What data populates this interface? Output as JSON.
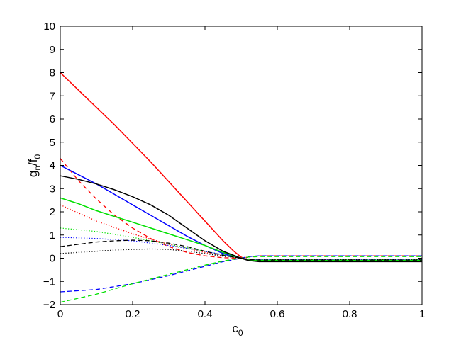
{
  "chart_data": {
    "type": "line",
    "title": "",
    "xlabel": "c",
    "xlabel_subscript": "0",
    "ylabel": "g",
    "ylabel_subscript": "n",
    "ylabel_sep": "/f",
    "ylabel_subscript2": "0",
    "xlim": [
      0,
      1
    ],
    "ylim": [
      -2,
      10
    ],
    "xticks": [
      0,
      0.2,
      0.4,
      0.6,
      0.8,
      1
    ],
    "xtick_labels": [
      "0",
      "0.2",
      "0.4",
      "0.6",
      "0.8",
      "1"
    ],
    "yticks": [
      -2,
      -1,
      0,
      1,
      2,
      3,
      4,
      5,
      6,
      7,
      8,
      9,
      10
    ],
    "ytick_labels": [
      "−2",
      "−1",
      "0",
      "1",
      "2",
      "3",
      "4",
      "5",
      "6",
      "7",
      "8",
      "9",
      "10"
    ],
    "grid": false,
    "legend": "none",
    "series": [
      {
        "color": "#ff0000",
        "style": "solid",
        "x": [
          0,
          0.05,
          0.1,
          0.15,
          0.2,
          0.25,
          0.3,
          0.35,
          0.4,
          0.45,
          0.48,
          0.5,
          0.52,
          0.55,
          0.6,
          0.8,
          1
        ],
        "y": [
          8.0,
          7.25,
          6.5,
          5.75,
          4.95,
          4.15,
          3.3,
          2.45,
          1.6,
          0.75,
          0.3,
          0.05,
          -0.1,
          -0.13,
          -0.13,
          -0.13,
          -0.13
        ]
      },
      {
        "color": "#ff0000",
        "style": "dashed",
        "x": [
          0,
          0.05,
          0.1,
          0.15,
          0.2,
          0.25,
          0.3,
          0.35,
          0.4,
          0.45,
          0.5,
          0.52,
          0.55,
          0.6,
          0.8,
          1
        ],
        "y": [
          4.3,
          3.35,
          2.55,
          1.85,
          1.3,
          0.85,
          0.5,
          0.25,
          0.1,
          0.02,
          0.0,
          0.05,
          0.1,
          0.1,
          0.1,
          0.1
        ]
      },
      {
        "color": "#ff0000",
        "style": "dotted",
        "x": [
          0,
          0.1,
          0.2,
          0.3,
          0.4,
          0.45,
          0.5,
          0.52,
          0.55,
          0.6,
          0.8,
          1
        ],
        "y": [
          2.3,
          1.6,
          1.05,
          0.6,
          0.25,
          0.1,
          0.0,
          -0.05,
          -0.07,
          -0.07,
          -0.07,
          -0.07
        ]
      },
      {
        "color": "#0000ff",
        "style": "solid",
        "x": [
          0,
          0.05,
          0.1,
          0.15,
          0.2,
          0.25,
          0.3,
          0.35,
          0.4,
          0.45,
          0.5,
          0.52,
          0.55,
          0.6,
          0.8,
          1
        ],
        "y": [
          4.0,
          3.6,
          3.2,
          2.75,
          2.3,
          1.85,
          1.4,
          0.95,
          0.55,
          0.2,
          0.0,
          -0.08,
          -0.1,
          -0.1,
          -0.1,
          -0.1
        ]
      },
      {
        "color": "#0000ff",
        "style": "dashed",
        "x": [
          0,
          0.1,
          0.2,
          0.3,
          0.4,
          0.45,
          0.5,
          0.52,
          0.55,
          0.6,
          0.8,
          1
        ],
        "y": [
          -1.45,
          -1.35,
          -1.1,
          -0.75,
          -0.35,
          -0.15,
          0.0,
          0.07,
          0.1,
          0.1,
          0.1,
          0.1
        ]
      },
      {
        "color": "#0000ff",
        "style": "dotted",
        "x": [
          0,
          0.1,
          0.2,
          0.3,
          0.4,
          0.5,
          0.52,
          0.55,
          0.6,
          0.8,
          1
        ],
        "y": [
          0.9,
          0.85,
          0.75,
          0.55,
          0.3,
          0.0,
          -0.05,
          -0.05,
          -0.05,
          -0.05,
          -0.05
        ]
      },
      {
        "color": "#00e000",
        "style": "solid",
        "x": [
          0,
          0.05,
          0.1,
          0.15,
          0.2,
          0.25,
          0.3,
          0.35,
          0.4,
          0.45,
          0.5,
          0.52,
          0.55,
          0.6,
          0.8,
          1
        ],
        "y": [
          2.6,
          2.35,
          2.05,
          1.8,
          1.55,
          1.3,
          1.05,
          0.8,
          0.55,
          0.25,
          0.0,
          -0.08,
          -0.1,
          -0.1,
          -0.1,
          -0.1
        ]
      },
      {
        "color": "#00e000",
        "style": "dashed",
        "x": [
          0,
          0.1,
          0.2,
          0.3,
          0.4,
          0.45,
          0.5,
          0.52,
          0.55,
          0.6,
          0.8,
          1
        ],
        "y": [
          -1.9,
          -1.55,
          -1.1,
          -0.7,
          -0.3,
          -0.12,
          0.0,
          0.05,
          0.07,
          0.07,
          0.07,
          0.07
        ]
      },
      {
        "color": "#00e000",
        "style": "dotted",
        "x": [
          0,
          0.1,
          0.2,
          0.3,
          0.4,
          0.5,
          0.52,
          0.55,
          0.6,
          0.8,
          1
        ],
        "y": [
          1.3,
          1.15,
          0.9,
          0.6,
          0.3,
          0.0,
          -0.05,
          -0.06,
          -0.06,
          -0.06,
          -0.06
        ]
      },
      {
        "color": "#000000",
        "style": "solid",
        "x": [
          0,
          0.05,
          0.1,
          0.15,
          0.2,
          0.25,
          0.3,
          0.35,
          0.4,
          0.45,
          0.5,
          0.52,
          0.55,
          0.6,
          0.8,
          1
        ],
        "y": [
          3.55,
          3.4,
          3.2,
          2.95,
          2.65,
          2.3,
          1.85,
          1.3,
          0.75,
          0.3,
          0.0,
          -0.1,
          -0.15,
          -0.15,
          -0.15,
          -0.15
        ]
      },
      {
        "color": "#000000",
        "style": "dashed",
        "x": [
          0,
          0.05,
          0.1,
          0.15,
          0.2,
          0.25,
          0.3,
          0.35,
          0.4,
          0.45,
          0.5,
          0.52,
          0.55,
          0.6,
          0.8,
          1
        ],
        "y": [
          0.5,
          0.6,
          0.7,
          0.75,
          0.78,
          0.75,
          0.65,
          0.5,
          0.3,
          0.12,
          0.0,
          -0.05,
          -0.08,
          -0.08,
          -0.08,
          -0.08
        ]
      },
      {
        "color": "#000000",
        "style": "dotted",
        "x": [
          0,
          0.05,
          0.1,
          0.15,
          0.2,
          0.25,
          0.3,
          0.35,
          0.4,
          0.45,
          0.5,
          0.52,
          0.55,
          0.6,
          0.8,
          1
        ],
        "y": [
          0.2,
          0.25,
          0.3,
          0.35,
          0.38,
          0.4,
          0.38,
          0.3,
          0.2,
          0.08,
          0.0,
          -0.03,
          -0.05,
          -0.05,
          -0.05,
          -0.05
        ]
      }
    ]
  }
}
